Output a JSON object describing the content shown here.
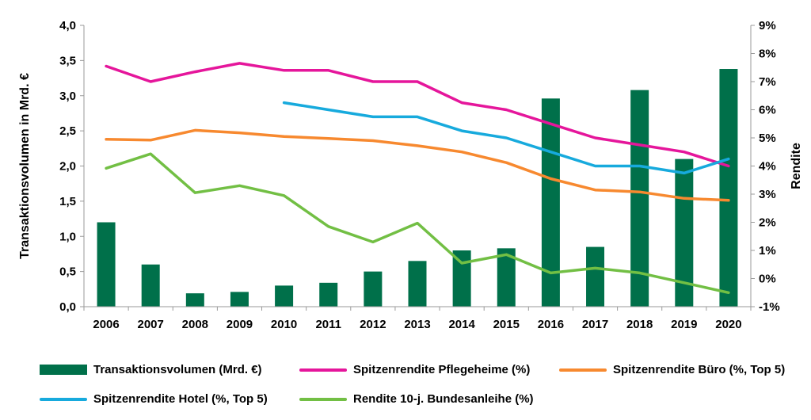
{
  "chart_data": {
    "type": "bar+line",
    "categories": [
      "2006",
      "2007",
      "2008",
      "2009",
      "2010",
      "2011",
      "2012",
      "2013",
      "2014",
      "2015",
      "2016",
      "2017",
      "2018",
      "2019",
      "2020"
    ],
    "y_left": {
      "label": "Transaktionsvolumen  in Mrd. €",
      "range": [
        0,
        4
      ],
      "ticks": [
        "0,0",
        "0,5",
        "1,0",
        "1,5",
        "2,0",
        "2,5",
        "3,0",
        "3,5",
        "4,0"
      ]
    },
    "y_right": {
      "label": "Rendite",
      "range": [
        -1,
        9
      ],
      "ticks": [
        "-1%",
        "0%",
        "1%",
        "2%",
        "3%",
        "4%",
        "5%",
        "6%",
        "7%",
        "8%",
        "9%"
      ]
    },
    "bars": {
      "name": "Transaktionsvolumen  (Mrd. €)",
      "color": "#00704a",
      "axis": "left",
      "values": [
        1.2,
        0.6,
        0.19,
        0.21,
        0.3,
        0.34,
        0.5,
        0.65,
        0.8,
        0.83,
        2.96,
        0.85,
        3.08,
        2.1,
        3.38
      ]
    },
    "series": [
      {
        "name": "Spitzenrendite Pflegeheime (%)",
        "color": "#e5169b",
        "axis": "right",
        "values": [
          7.55,
          7.0,
          7.35,
          7.65,
          7.4,
          7.4,
          7.0,
          7.0,
          6.25,
          6.0,
          5.5,
          5.0,
          4.75,
          4.5,
          4.0
        ]
      },
      {
        "name": "Spitzenrendite Büro (%, Top 5)",
        "color": "#f7892f",
        "axis": "right",
        "values": [
          4.95,
          4.92,
          5.27,
          5.18,
          5.05,
          4.98,
          4.9,
          4.72,
          4.5,
          4.12,
          3.55,
          3.15,
          3.08,
          2.85,
          2.78
        ]
      },
      {
        "name": "Spitzenrendite Hotel (%, Top 5)",
        "color": "#17aadd",
        "axis": "right",
        "values": [
          null,
          null,
          null,
          null,
          6.25,
          6.0,
          5.75,
          5.75,
          5.25,
          5.0,
          4.5,
          4.0,
          4.0,
          3.75,
          4.25
        ]
      },
      {
        "name": "Rendite 10-j. Bundesanleihe (%)",
        "color": "#72bf44",
        "axis": "right",
        "values": [
          3.92,
          4.43,
          3.05,
          3.3,
          2.95,
          1.85,
          1.3,
          1.97,
          0.55,
          0.85,
          0.2,
          0.37,
          0.2,
          -0.15,
          -0.5
        ]
      }
    ],
    "legend_position": "bottom",
    "grid": false
  }
}
